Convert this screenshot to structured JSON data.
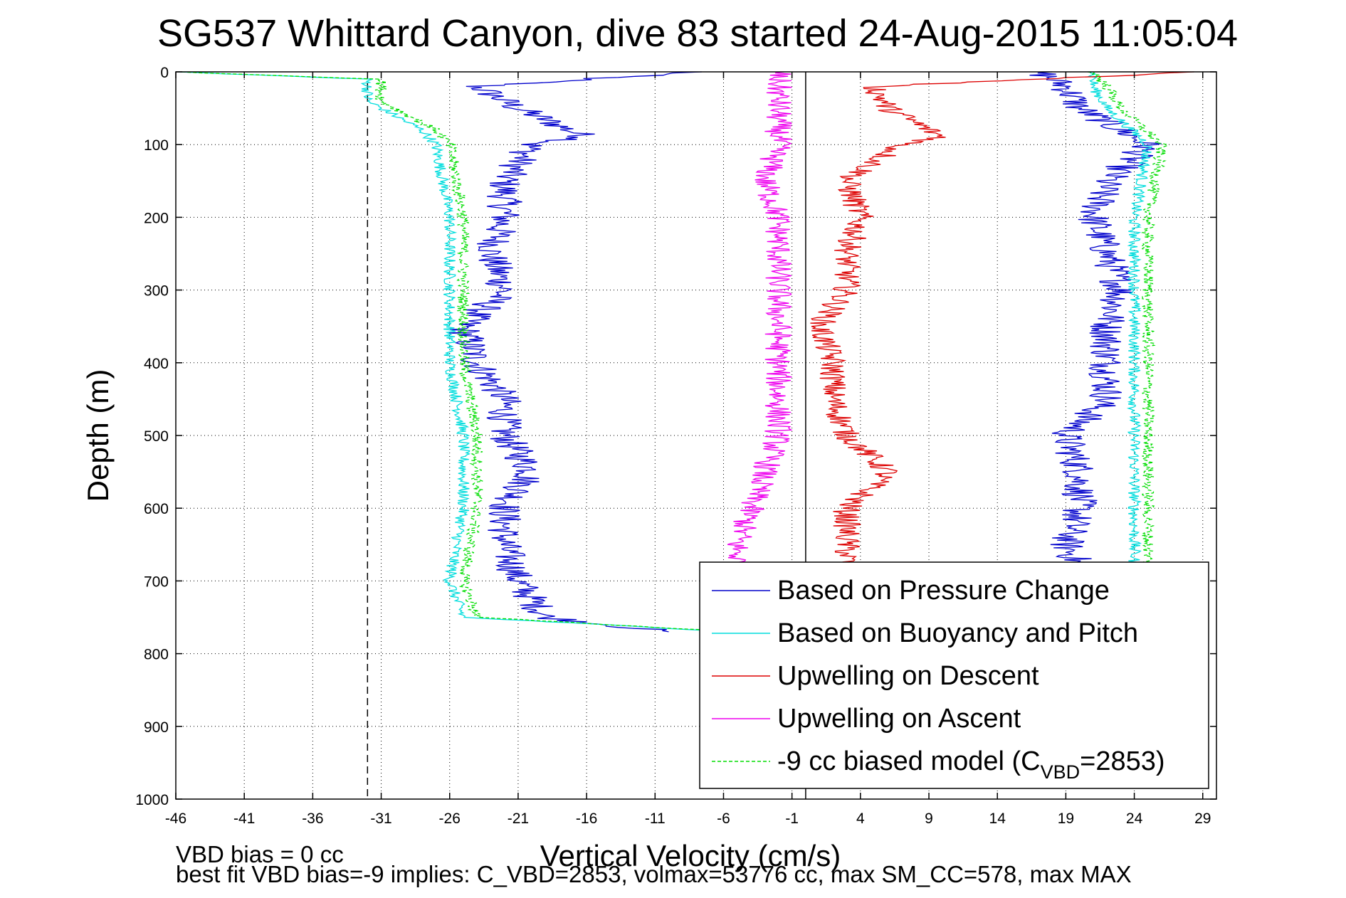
{
  "chart_data": {
    "type": "line",
    "title": "SG537 Whittard Canyon, dive 83 started 24-Aug-2015 11:05:04",
    "xlabel": "Vertical Velocity (cm/s)",
    "ylabel": "Depth (m)",
    "xlim": [
      -46,
      30
    ],
    "ylim": [
      1000,
      0
    ],
    "y_reversed": true,
    "xticks": [
      -46,
      -41,
      -36,
      -31,
      -26,
      -21,
      -16,
      -11,
      -6,
      -1,
      4,
      9,
      14,
      19,
      24,
      29
    ],
    "yticks": [
      0,
      100,
      200,
      300,
      400,
      500,
      600,
      700,
      800,
      900,
      1000
    ],
    "grid": true,
    "legend_position": "bottom-right",
    "reference_lines": [
      {
        "axis": "x",
        "value": -32,
        "style": "dashed"
      },
      {
        "axis": "x",
        "value": 0,
        "style": "solid"
      }
    ],
    "series": [
      {
        "name": "Based on Pressure Change",
        "color": "#0000cc",
        "style": "solid",
        "descent": {
          "depth": [
            0,
            20,
            50,
            90,
            100,
            150,
            200,
            250,
            300,
            350,
            400,
            450,
            500,
            550,
            600,
            650,
            700,
            750,
            770
          ],
          "velocity": [
            -8,
            -24,
            -21,
            -16,
            -20,
            -22,
            -22,
            -23,
            -22,
            -25,
            -24,
            -22,
            -22,
            -20,
            -22,
            -22,
            -21,
            -19,
            -10
          ]
        },
        "ascent": {
          "depth": [
            0,
            20,
            50,
            100,
            150,
            200,
            250,
            300,
            350,
            400,
            450,
            500,
            550,
            600,
            650,
            680
          ],
          "velocity": [
            17,
            19,
            20,
            25,
            22,
            21,
            22,
            23,
            22,
            22,
            22,
            19,
            20,
            20,
            19,
            20
          ]
        }
      },
      {
        "name": "Based on Buoyancy and Pitch",
        "color": "#00dddd",
        "style": "solid",
        "descent": {
          "depth": [
            0,
            10,
            40,
            80,
            100,
            200,
            300,
            400,
            500,
            600,
            700,
            750,
            770
          ],
          "velocity": [
            -46,
            -32,
            -32,
            -28,
            -27,
            -26,
            -26,
            -26,
            -25,
            -25,
            -26,
            -25,
            -5
          ]
        },
        "ascent": {
          "depth": [
            0,
            20,
            50,
            100,
            200,
            300,
            400,
            500,
            600,
            680
          ],
          "velocity": [
            21,
            21,
            22,
            25,
            24,
            24,
            24,
            24,
            24,
            24
          ]
        }
      },
      {
        "name": "Upwelling on Descent",
        "color": "#dd0000",
        "style": "solid",
        "depth": [
          0,
          20,
          50,
          90,
          100,
          150,
          200,
          250,
          300,
          350,
          400,
          450,
          500,
          550,
          600,
          650,
          680
        ],
        "velocity": [
          29,
          5,
          6,
          10,
          7,
          3,
          4,
          3,
          3,
          1,
          2,
          2,
          3,
          6,
          3,
          3,
          3
        ]
      },
      {
        "name": "Upwelling on Ascent",
        "color": "#ee00ee",
        "style": "solid",
        "depth": [
          0,
          50,
          100,
          150,
          200,
          250,
          300,
          350,
          400,
          450,
          500,
          550,
          600,
          650,
          680
        ],
        "velocity": [
          -2,
          -2,
          -2,
          -3,
          -2,
          -2,
          -2,
          -2,
          -2,
          -2,
          -2,
          -3,
          -4,
          -5,
          -5
        ]
      },
      {
        "name": "-9 cc biased model (C_VBD=2853)",
        "legend_label_parts": [
          "-9 cc biased model (C",
          "VBD",
          "=2853)"
        ],
        "color": "#00dd00",
        "style": "dashed",
        "descent": {
          "depth": [
            0,
            10,
            40,
            80,
            100,
            200,
            300,
            400,
            500,
            600,
            700,
            750,
            770
          ],
          "velocity": [
            -46,
            -31,
            -31,
            -27,
            -26,
            -25,
            -25,
            -25,
            -24,
            -24,
            -25,
            -24,
            -5
          ]
        },
        "ascent": {
          "depth": [
            0,
            20,
            50,
            100,
            200,
            300,
            400,
            500,
            600,
            680
          ],
          "velocity": [
            21,
            22,
            23,
            26,
            25,
            25,
            25,
            25,
            25,
            25
          ]
        }
      }
    ],
    "footer": {
      "line1": "VBD bias = 0 cc",
      "line2": "best fit VBD bias=-9 implies: C_VBD=2853, volmax=53776 cc, max SM_CC=578, max MAX"
    }
  }
}
